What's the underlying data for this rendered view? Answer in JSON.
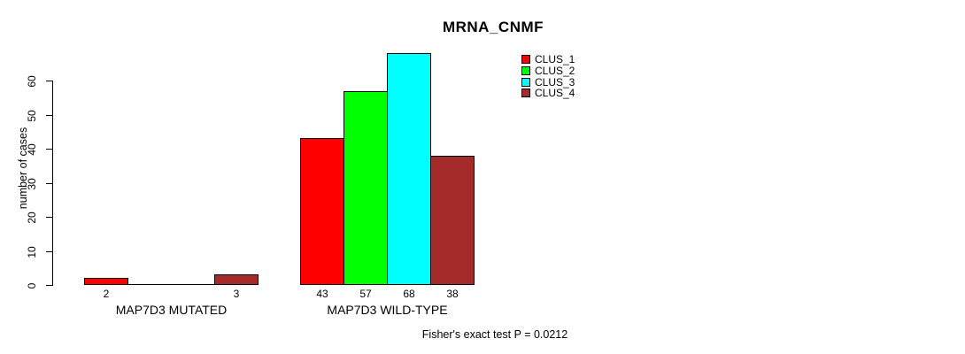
{
  "title": "MRNA_CNMF",
  "chart_data": {
    "type": "bar",
    "title": "MRNA_CNMF",
    "xlabel": "",
    "ylabel": "number of cases",
    "categories": [
      "MAP7D3 MUTATED",
      "MAP7D3 WILD-TYPE"
    ],
    "series": [
      {
        "name": "CLUS_1",
        "color": "#ff0000",
        "values": [
          2,
          43
        ]
      },
      {
        "name": "CLUS_2",
        "color": "#00ff00",
        "values": [
          0,
          57
        ]
      },
      {
        "name": "CLUS_3",
        "color": "#00ffff",
        "values": [
          0,
          68
        ]
      },
      {
        "name": "CLUS_4",
        "color": "#a52a2a",
        "values": [
          3,
          38
        ]
      }
    ],
    "bar_value_labels": {
      "shown": true,
      "hidden_when_zero": true
    },
    "yticks": [
      0,
      10,
      20,
      30,
      40,
      50,
      60
    ],
    "ylim": [
      0,
      68
    ],
    "grid": false,
    "legend_position": "top-right",
    "legend_entries": [
      "CLUS_1",
      "CLUS_2",
      "CLUS_3",
      "CLUS_4"
    ],
    "annotation": "Fisher's exact test P = 0.0212"
  },
  "colors": {
    "axis": "#000000",
    "bar_border": "#000000",
    "background": "#ffffff",
    "text": "#000000"
  }
}
